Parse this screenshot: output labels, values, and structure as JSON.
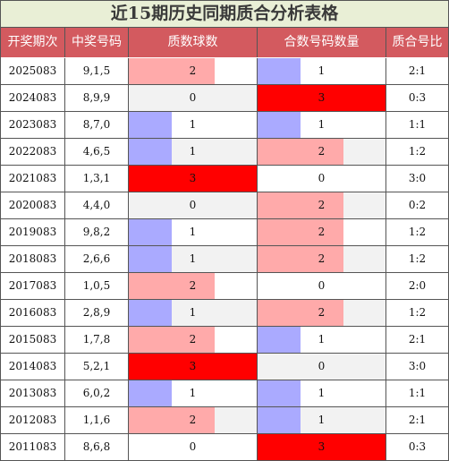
{
  "title": "近15期历史同期质合分析表格",
  "headers": [
    "开奖期次",
    "中奖号码",
    "质数球数",
    "合数号码数量",
    "质合号比"
  ],
  "colors": {
    "header_bg": "#d35a5f",
    "title_bg": "#e9efd6",
    "count_1": "#aaaaff",
    "count_2": "#ffaaaa",
    "count_3": "#ff0000"
  },
  "max_count": 3,
  "rows": [
    {
      "period": "2025083",
      "numbers": "9,1,5",
      "prime": "2",
      "composite": "1",
      "ratio": "2:1"
    },
    {
      "period": "2024083",
      "numbers": "8,9,9",
      "prime": "0",
      "composite": "3",
      "ratio": "0:3"
    },
    {
      "period": "2023083",
      "numbers": "8,7,0",
      "prime": "1",
      "composite": "1",
      "ratio": "1:1"
    },
    {
      "period": "2022083",
      "numbers": "4,6,5",
      "prime": "1",
      "composite": "2",
      "ratio": "1:2"
    },
    {
      "period": "2021083",
      "numbers": "1,3,1",
      "prime": "3",
      "composite": "0",
      "ratio": "3:0"
    },
    {
      "period": "2020083",
      "numbers": "4,4,0",
      "prime": "0",
      "composite": "2",
      "ratio": "0:2"
    },
    {
      "period": "2019083",
      "numbers": "9,8,2",
      "prime": "1",
      "composite": "2",
      "ratio": "1:2"
    },
    {
      "period": "2018083",
      "numbers": "2,6,6",
      "prime": "1",
      "composite": "2",
      "ratio": "1:2"
    },
    {
      "period": "2017083",
      "numbers": "1,0,5",
      "prime": "2",
      "composite": "0",
      "ratio": "2:0"
    },
    {
      "period": "2016083",
      "numbers": "2,8,9",
      "prime": "1",
      "composite": "2",
      "ratio": "1:2"
    },
    {
      "period": "2015083",
      "numbers": "1,7,8",
      "prime": "2",
      "composite": "1",
      "ratio": "2:1"
    },
    {
      "period": "2014083",
      "numbers": "5,2,1",
      "prime": "3",
      "composite": "0",
      "ratio": "3:0"
    },
    {
      "period": "2013083",
      "numbers": "6,0,2",
      "prime": "1",
      "composite": "1",
      "ratio": "1:1"
    },
    {
      "period": "2012083",
      "numbers": "1,1,6",
      "prime": "2",
      "composite": "1",
      "ratio": "2:1"
    },
    {
      "period": "2011083",
      "numbers": "8,6,8",
      "prime": "0",
      "composite": "3",
      "ratio": "0:3"
    }
  ]
}
